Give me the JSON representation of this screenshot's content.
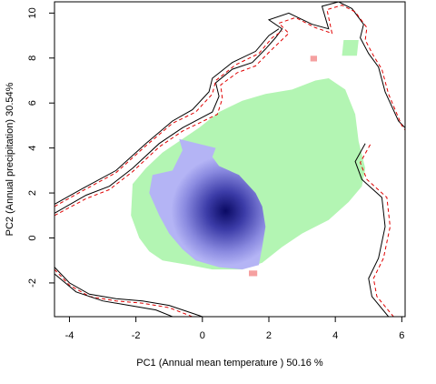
{
  "chart_data": {
    "type": "heatmap",
    "title": "",
    "xlabel": "PC1 (Annual mean temperature ) 50.16 %",
    "ylabel": "PC2 (Annual precipitation) 30.54%",
    "xlim": [
      -4.45,
      6.1
    ],
    "ylim": [
      -3.5,
      10.5
    ],
    "x_ticks": [
      -4,
      -2,
      0,
      2,
      4,
      6
    ],
    "y_ticks": [
      -2,
      0,
      2,
      4,
      6,
      8,
      10
    ],
    "grid": false,
    "legend": "none",
    "density_peak": {
      "x": 0.7,
      "y": 1.2,
      "color": "#0a0a64"
    },
    "colors": {
      "overlap_region": "#b3f5b3",
      "density_low": "#b4b4f5",
      "density_high": "#0a0a64",
      "unique_region": "#f5a0a0",
      "contour_primary": "#000000",
      "contour_secondary": "#e00000"
    },
    "regions": [
      {
        "name": "green-range",
        "color": "#b3f5b3",
        "points": [
          [
            -2.1,
            2.4
          ],
          [
            -1.7,
            3.1
          ],
          [
            -1.2,
            3.8
          ],
          [
            -0.6,
            4.4
          ],
          [
            -0.1,
            4.9
          ],
          [
            0.5,
            5.6
          ],
          [
            1.2,
            6.1
          ],
          [
            1.9,
            6.4
          ],
          [
            2.7,
            6.6
          ],
          [
            3.4,
            7.0
          ],
          [
            3.8,
            7.1
          ],
          [
            4.3,
            6.6
          ],
          [
            4.6,
            5.5
          ],
          [
            4.7,
            4.3
          ],
          [
            4.9,
            3.1
          ],
          [
            4.8,
            2.3
          ],
          [
            4.4,
            1.6
          ],
          [
            3.8,
            0.8
          ],
          [
            3.0,
            0.2
          ],
          [
            2.4,
            -0.4
          ],
          [
            1.8,
            -1.1
          ],
          [
            1.2,
            -1.4
          ],
          [
            0.3,
            -1.4
          ],
          [
            -0.4,
            -1.2
          ],
          [
            -1.2,
            -1.0
          ],
          [
            -1.6,
            -0.6
          ],
          [
            -1.9,
            0.0
          ],
          [
            -2.15,
            1.0
          ]
        ]
      },
      {
        "name": "green-patch",
        "color": "#b3f5b3",
        "points": [
          [
            4.2,
            8.1
          ],
          [
            4.65,
            8.1
          ],
          [
            4.7,
            8.8
          ],
          [
            4.25,
            8.8
          ]
        ]
      },
      {
        "name": "blue-range",
        "color": "#b4b4f5",
        "points": [
          [
            -0.7,
            4.4
          ],
          [
            -0.6,
            3.9
          ],
          [
            -0.9,
            3.0
          ],
          [
            -1.5,
            2.8
          ],
          [
            -1.6,
            2.0
          ],
          [
            -1.3,
            1.0
          ],
          [
            -1.0,
            0.2
          ],
          [
            -0.6,
            -0.5
          ],
          [
            -0.2,
            -1.0
          ],
          [
            0.5,
            -1.3
          ],
          [
            1.2,
            -1.4
          ],
          [
            1.7,
            -1.2
          ],
          [
            1.8,
            -0.4
          ],
          [
            1.9,
            0.5
          ],
          [
            1.8,
            1.4
          ],
          [
            1.6,
            2.0
          ],
          [
            1.1,
            2.8
          ],
          [
            0.5,
            3.2
          ],
          [
            0.3,
            3.6
          ],
          [
            0.4,
            4.0
          ]
        ]
      },
      {
        "name": "red-patch",
        "color": "#f5a0a0",
        "points": [
          [
            3.25,
            7.85
          ],
          [
            3.45,
            7.85
          ],
          [
            3.45,
            8.1
          ],
          [
            3.25,
            8.1
          ]
        ]
      },
      {
        "name": "red-patch",
        "color": "#f5a0a0",
        "points": [
          [
            1.4,
            -1.45
          ],
          [
            1.65,
            -1.45
          ],
          [
            1.65,
            -1.7
          ],
          [
            1.4,
            -1.7
          ]
        ]
      }
    ],
    "contours": [
      {
        "name": "outer-contour",
        "color": "#000000",
        "dash": "",
        "points": [
          [
            -4.45,
            1.1
          ],
          [
            -3.5,
            1.9
          ],
          [
            -2.8,
            2.3
          ],
          [
            -2.1,
            3.1
          ],
          [
            -1.3,
            4.2
          ],
          [
            -0.6,
            4.9
          ],
          [
            0.3,
            5.6
          ],
          [
            0.5,
            6.3
          ],
          [
            0.4,
            6.9
          ],
          [
            0.9,
            7.5
          ],
          [
            1.5,
            7.8
          ],
          [
            1.9,
            8.4
          ],
          [
            2.2,
            8.9
          ],
          [
            2.4,
            9.3
          ],
          [
            2.0,
            9.7
          ],
          [
            2.6,
            10.0
          ],
          [
            3.3,
            9.5
          ],
          [
            3.8,
            9.3
          ],
          [
            3.6,
            10.3
          ],
          [
            4.1,
            10.5
          ],
          [
            4.5,
            10.2
          ],
          [
            4.85,
            9.5
          ],
          [
            4.75,
            8.9
          ],
          [
            5.0,
            8.2
          ],
          [
            5.3,
            7.6
          ],
          [
            5.5,
            6.5
          ],
          [
            5.9,
            5.2
          ],
          [
            6.1,
            4.9
          ]
        ]
      },
      {
        "name": "outer-contour",
        "color": "#e00000",
        "dash": "4,3",
        "points": [
          [
            -4.45,
            1.0
          ],
          [
            -3.5,
            1.75
          ],
          [
            -2.8,
            2.15
          ],
          [
            -2.1,
            2.95
          ],
          [
            -1.3,
            4.05
          ],
          [
            -0.6,
            4.75
          ],
          [
            0.45,
            5.5
          ],
          [
            0.6,
            6.2
          ],
          [
            0.55,
            6.8
          ],
          [
            1.05,
            7.35
          ],
          [
            1.6,
            7.65
          ],
          [
            2.0,
            8.25
          ],
          [
            2.35,
            8.75
          ],
          [
            2.6,
            9.1
          ],
          [
            2.3,
            9.55
          ],
          [
            2.8,
            9.8
          ],
          [
            3.4,
            9.35
          ],
          [
            3.9,
            9.1
          ],
          [
            3.75,
            10.15
          ],
          [
            4.2,
            10.35
          ],
          [
            4.6,
            10.05
          ],
          [
            4.95,
            9.35
          ],
          [
            4.9,
            8.8
          ],
          [
            5.15,
            8.1
          ],
          [
            5.4,
            7.5
          ],
          [
            5.6,
            6.4
          ],
          [
            6.0,
            5.0
          ],
          [
            6.1,
            4.8
          ]
        ]
      },
      {
        "name": "inner-contour",
        "color": "#000000",
        "dash": "",
        "points": [
          [
            -4.45,
            1.5
          ],
          [
            -3.6,
            2.2
          ],
          [
            -2.6,
            3.0
          ],
          [
            -1.7,
            4.2
          ],
          [
            -0.9,
            5.2
          ],
          [
            -0.3,
            5.7
          ],
          [
            0.2,
            6.5
          ],
          [
            0.3,
            7.1
          ],
          [
            0.9,
            7.8
          ],
          [
            1.6,
            8.3
          ],
          [
            2.0,
            9.0
          ],
          [
            2.3,
            9.3
          ]
        ]
      },
      {
        "name": "inner-contour",
        "color": "#e00000",
        "dash": "4,3",
        "points": [
          [
            -4.45,
            1.4
          ],
          [
            -3.6,
            2.1
          ],
          [
            -2.6,
            2.9
          ],
          [
            -1.7,
            4.1
          ],
          [
            -0.9,
            5.1
          ],
          [
            -0.2,
            5.6
          ],
          [
            0.3,
            6.4
          ],
          [
            0.4,
            7.0
          ],
          [
            1.0,
            7.7
          ],
          [
            1.7,
            8.2
          ],
          [
            2.1,
            8.9
          ],
          [
            2.4,
            9.2
          ]
        ]
      },
      {
        "name": "right-contour",
        "color": "#000000",
        "dash": "",
        "points": [
          [
            4.9,
            4.2
          ],
          [
            4.6,
            3.4
          ],
          [
            4.8,
            2.6
          ],
          [
            5.4,
            1.8
          ],
          [
            5.5,
            0.5
          ],
          [
            5.3,
            -0.9
          ],
          [
            5.0,
            -1.8
          ],
          [
            5.1,
            -2.6
          ],
          [
            5.6,
            -3.5
          ]
        ]
      },
      {
        "name": "right-contour",
        "color": "#e00000",
        "dash": "4,3",
        "points": [
          [
            5.05,
            4.15
          ],
          [
            4.75,
            3.35
          ],
          [
            4.95,
            2.6
          ],
          [
            5.55,
            1.8
          ],
          [
            5.65,
            0.5
          ],
          [
            5.45,
            -0.9
          ],
          [
            5.15,
            -1.8
          ],
          [
            5.25,
            -2.6
          ],
          [
            5.75,
            -3.5
          ]
        ]
      },
      {
        "name": "lower-contour",
        "color": "#000000",
        "dash": "",
        "points": [
          [
            -4.45,
            -1.3
          ],
          [
            -4.0,
            -2.0
          ],
          [
            -3.4,
            -2.5
          ],
          [
            -2.6,
            -2.7
          ],
          [
            -1.8,
            -2.8
          ],
          [
            -1.0,
            -3.0
          ],
          [
            -0.2,
            -3.4
          ],
          [
            0.0,
            -3.5
          ]
        ]
      },
      {
        "name": "lower-contour",
        "color": "#e00000",
        "dash": "4,3",
        "points": [
          [
            -4.45,
            -1.4
          ],
          [
            -4.0,
            -2.1
          ],
          [
            -3.4,
            -2.6
          ],
          [
            -2.6,
            -2.8
          ],
          [
            -1.8,
            -2.9
          ],
          [
            -1.0,
            -3.1
          ],
          [
            -0.3,
            -3.5
          ]
        ]
      },
      {
        "name": "lower-contour",
        "color": "#000000",
        "dash": "",
        "points": [
          [
            -4.45,
            -1.6
          ],
          [
            -3.8,
            -2.4
          ],
          [
            -3.0,
            -2.8
          ],
          [
            -2.2,
            -3.0
          ],
          [
            -1.4,
            -3.2
          ],
          [
            -0.9,
            -3.5
          ]
        ]
      }
    ]
  }
}
